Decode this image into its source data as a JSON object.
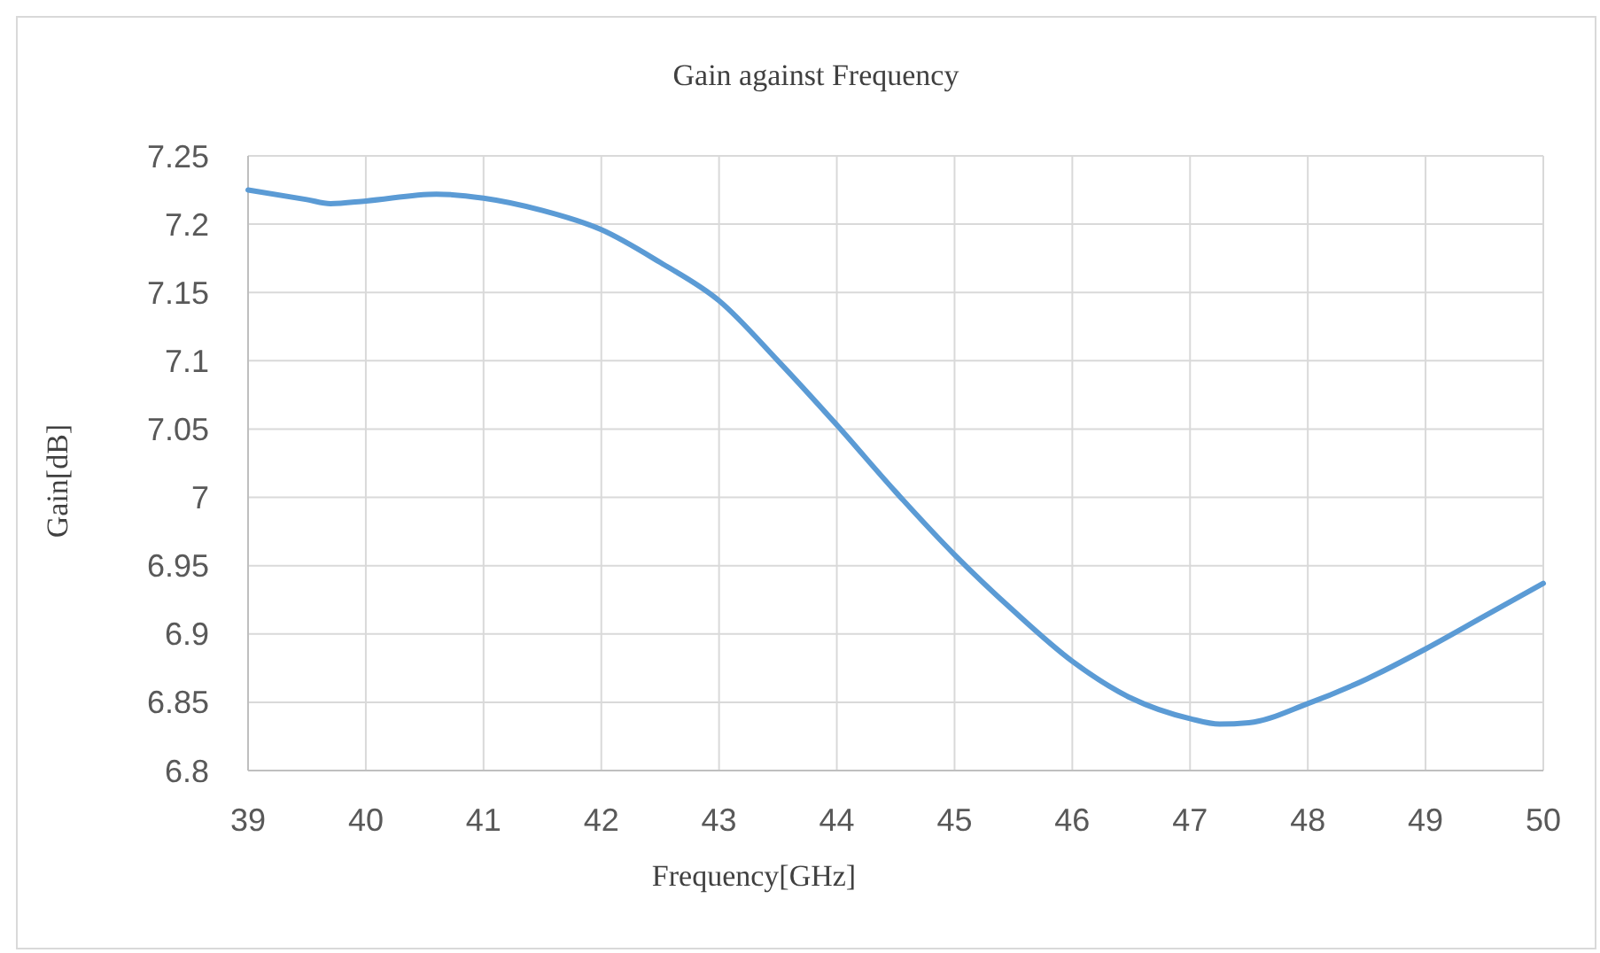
{
  "chart_data": {
    "type": "line",
    "title": "Gain against Frequency",
    "xlabel": "Frequency[GHz]",
    "ylabel": "Gain[dB]",
    "x": [
      39,
      39.5,
      39.7,
      40,
      40.6,
      41,
      41.5,
      42,
      42.5,
      43,
      43.5,
      44,
      44.5,
      45,
      45.5,
      46,
      46.5,
      47,
      47.25,
      47.5,
      48,
      48.5,
      49,
      49.5,
      50
    ],
    "series": [
      {
        "color": "#5b9bd5",
        "values": [
          7.225,
          7.218,
          7.215,
          7.217,
          7.222,
          7.219,
          7.21,
          7.196,
          7.172,
          7.144,
          7.1,
          7.053,
          7.004,
          6.958,
          6.917,
          6.88,
          6.853,
          6.838,
          6.834,
          6.835,
          6.849,
          6.867,
          6.889,
          6.913,
          6.937
        ]
      }
    ],
    "xlim": [
      39,
      50
    ],
    "xticks": [
      39,
      40,
      41,
      42,
      43,
      44,
      45,
      46,
      47,
      48,
      49,
      50
    ],
    "ylim": [
      6.8,
      7.25
    ],
    "yticks": [
      6.8,
      6.85,
      6.9,
      6.95,
      7,
      7.05,
      7.1,
      7.15,
      7.2,
      7.25
    ],
    "grid": true,
    "marker": "none",
    "line_style": "solid"
  }
}
